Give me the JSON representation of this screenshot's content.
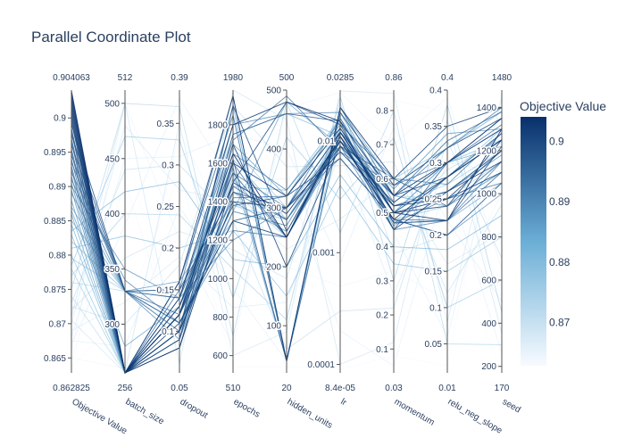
{
  "chart_data": {
    "type": "parallel_coordinates",
    "title": "Parallel Coordinate Plot",
    "dimensions": [
      {
        "label": "Objective Value",
        "min": 0.862825,
        "max": 0.904063,
        "min_label": "0.862825",
        "max_label": "0.904063",
        "ticks": [
          0.865,
          0.87,
          0.875,
          0.88,
          0.885,
          0.89,
          0.895,
          0.9
        ],
        "tick_labels": [
          "0.865",
          "0.87",
          "0.875",
          "0.88",
          "0.885",
          "0.89",
          "0.895",
          "0.9"
        ],
        "scale": "linear"
      },
      {
        "label": "batch_size",
        "min": 256,
        "max": 512,
        "min_label": "256",
        "max_label": "512",
        "ticks": [
          300,
          350,
          400,
          450,
          500
        ],
        "tick_labels": [
          "300",
          "350",
          "400",
          "450",
          "500"
        ],
        "scale": "linear"
      },
      {
        "label": "dropout",
        "min": 0.05,
        "max": 0.39,
        "min_label": "0.05",
        "max_label": "0.39",
        "ticks": [
          0.1,
          0.15,
          0.2,
          0.25,
          0.3,
          0.35
        ],
        "tick_labels": [
          "0.1",
          "0.15",
          "0.2",
          "0.25",
          "0.3",
          "0.35"
        ],
        "scale": "linear"
      },
      {
        "label": "epochs",
        "min": 510,
        "max": 1980,
        "min_label": "510",
        "max_label": "1980",
        "ticks": [
          600,
          800,
          1000,
          1200,
          1400,
          1600,
          1800
        ],
        "tick_labels": [
          "600",
          "800",
          "1000",
          "1200",
          "1400",
          "1600",
          "1800"
        ],
        "scale": "linear"
      },
      {
        "label": "hidden_units",
        "min": 20,
        "max": 500,
        "min_label": "20",
        "max_label": "500",
        "ticks": [
          100,
          200,
          300,
          400,
          500
        ],
        "tick_labels": [
          "100",
          "200",
          "300",
          "400",
          "500"
        ],
        "scale": "linear"
      },
      {
        "label": "lr",
        "min": 8.4e-05,
        "max": 0.0285,
        "min_label": "8.4e-05",
        "max_label": "0.0285",
        "ticks": [
          0.0001,
          0.001,
          0.01
        ],
        "tick_labels": [
          "0.0001",
          "0.001",
          "0.01"
        ],
        "scale": "log"
      },
      {
        "label": "momentum",
        "min": 0.03,
        "max": 0.86,
        "min_label": "0.03",
        "max_label": "0.86",
        "ticks": [
          0.1,
          0.2,
          0.3,
          0.4,
          0.5,
          0.6,
          0.7,
          0.8
        ],
        "tick_labels": [
          "0.1",
          "0.2",
          "0.3",
          "0.4",
          "0.5",
          "0.6",
          "0.7",
          "0.8"
        ],
        "scale": "linear"
      },
      {
        "label": "relu_neg_slope",
        "min": 0.01,
        "max": 0.4,
        "min_label": "0.01",
        "max_label": "0.4",
        "ticks": [
          0.05,
          0.1,
          0.15,
          0.2,
          0.25,
          0.3,
          0.35,
          0.4
        ],
        "tick_labels": [
          "0.05",
          "0.1",
          "0.15",
          "0.2",
          "0.25",
          "0.3",
          "0.35",
          "0.4"
        ],
        "scale": "linear"
      },
      {
        "label": "seed",
        "min": 170,
        "max": 1480,
        "min_label": "170",
        "max_label": "1480",
        "ticks": [
          200,
          400,
          600,
          800,
          1000,
          1200,
          1400
        ],
        "tick_labels": [
          "200",
          "400",
          "600",
          "800",
          "1000",
          "1200",
          "1400"
        ],
        "scale": "linear"
      }
    ],
    "colorbar": {
      "title": "Objective Value",
      "min": 0.862825,
      "max": 0.904063,
      "ticks": [
        0.87,
        0.88,
        0.89,
        0.9
      ],
      "tick_labels": [
        "0.87",
        "0.88",
        "0.89",
        "0.9"
      ],
      "low_color": "#f7fbff",
      "mid_color": "#6baed6",
      "high_color": "#08306b"
    },
    "trials": [
      [
        0.904,
        256,
        0.12,
        1650,
        250,
        0.012,
        0.5,
        0.22,
        1300
      ],
      [
        0.9035,
        256,
        0.08,
        1500,
        290,
        0.01,
        0.48,
        0.28,
        1250
      ],
      [
        0.903,
        256,
        0.14,
        1800,
        480,
        0.015,
        0.55,
        0.3,
        1350
      ],
      [
        0.9025,
        256,
        0.1,
        1400,
        300,
        0.008,
        0.52,
        0.25,
        1200
      ],
      [
        0.902,
        256,
        0.16,
        1950,
        40,
        0.02,
        0.6,
        0.35,
        1400
      ],
      [
        0.9015,
        256,
        0.11,
        1300,
        250,
        0.011,
        0.45,
        0.26,
        1150
      ],
      [
        0.901,
        256,
        0.13,
        1600,
        320,
        0.013,
        0.5,
        0.24,
        1250
      ],
      [
        0.9005,
        256,
        0.09,
        1700,
        200,
        0.009,
        0.53,
        0.3,
        1300
      ],
      [
        0.9,
        256,
        0.12,
        1500,
        480,
        0.014,
        0.47,
        0.22,
        1220
      ],
      [
        0.8995,
        256,
        0.1,
        1900,
        260,
        0.01,
        0.55,
        0.28,
        1280
      ],
      [
        0.899,
        330,
        0.15,
        1450,
        300,
        0.012,
        0.5,
        0.25,
        1100
      ],
      [
        0.8985,
        256,
        0.08,
        1620,
        40,
        0.018,
        0.58,
        0.32,
        1350
      ],
      [
        0.898,
        256,
        0.12,
        1380,
        320,
        0.007,
        0.48,
        0.2,
        1050
      ],
      [
        0.8975,
        330,
        0.14,
        1550,
        250,
        0.011,
        0.52,
        0.26,
        1200
      ],
      [
        0.897,
        256,
        0.1,
        1750,
        460,
        0.015,
        0.45,
        0.3,
        1300
      ],
      [
        0.8965,
        256,
        0.13,
        1480,
        280,
        0.009,
        0.6,
        0.24,
        1150
      ],
      [
        0.896,
        330,
        0.11,
        1300,
        300,
        0.012,
        0.5,
        0.28,
        1250
      ],
      [
        0.8955,
        256,
        0.16,
        1850,
        40,
        0.02,
        0.55,
        0.33,
        1380
      ],
      [
        0.895,
        256,
        0.09,
        1600,
        250,
        0.01,
        0.48,
        0.22,
        1100
      ],
      [
        0.8945,
        330,
        0.12,
        1420,
        320,
        0.013,
        0.52,
        0.26,
        1200
      ],
      [
        0.894,
        256,
        0.14,
        1720,
        490,
        0.008,
        0.58,
        0.3,
        1320
      ],
      [
        0.8935,
        330,
        0.1,
        1350,
        270,
        0.011,
        0.47,
        0.25,
        1050
      ],
      [
        0.893,
        256,
        0.12,
        1550,
        300,
        0.016,
        0.5,
        0.28,
        1250
      ],
      [
        0.8925,
        256,
        0.15,
        1950,
        40,
        0.012,
        0.55,
        0.32,
        1400
      ],
      [
        0.892,
        340,
        0.11,
        1250,
        250,
        0.009,
        0.45,
        0.22,
        1150
      ],
      [
        0.8915,
        256,
        0.13,
        1650,
        330,
        0.014,
        0.6,
        0.27,
        1280
      ],
      [
        0.891,
        330,
        0.09,
        1450,
        280,
        0.01,
        0.5,
        0.25,
        1100
      ],
      [
        0.8905,
        256,
        0.12,
        1800,
        460,
        0.018,
        0.53,
        0.3,
        1350
      ],
      [
        0.89,
        350,
        0.14,
        1200,
        300,
        0.007,
        0.48,
        0.2,
        1000
      ],
      [
        0.8895,
        256,
        0.1,
        1580,
        40,
        0.012,
        0.57,
        0.34,
        1300
      ],
      [
        0.889,
        330,
        0.16,
        1400,
        260,
        0.011,
        0.52,
        0.26,
        1180
      ],
      [
        0.888,
        256,
        0.12,
        1700,
        320,
        0.015,
        0.46,
        0.28,
        1250
      ],
      [
        0.887,
        330,
        0.11,
        1350,
        480,
        0.009,
        0.55,
        0.24,
        1100
      ],
      [
        0.8865,
        280,
        0.13,
        1520,
        250,
        0.013,
        0.5,
        0.3,
        1220
      ],
      [
        0.886,
        256,
        0.09,
        1900,
        40,
        0.02,
        0.58,
        0.32,
        1380
      ],
      [
        0.885,
        330,
        0.15,
        1300,
        300,
        0.01,
        0.47,
        0.22,
        1050
      ],
      [
        0.8845,
        256,
        0.12,
        1620,
        280,
        0.012,
        0.52,
        0.26,
        1200
      ],
      [
        0.8835,
        420,
        0.28,
        1100,
        200,
        0.005,
        0.4,
        0.18,
        900
      ],
      [
        0.883,
        256,
        0.1,
        1480,
        330,
        0.016,
        0.55,
        0.28,
        1300
      ],
      [
        0.882,
        330,
        0.14,
        1750,
        460,
        0.011,
        0.5,
        0.3,
        1250
      ],
      [
        0.881,
        380,
        0.2,
        1250,
        150,
        0.004,
        0.35,
        0.15,
        800
      ],
      [
        0.88,
        256,
        0.12,
        1550,
        40,
        0.014,
        0.6,
        0.32,
        1350
      ],
      [
        0.8795,
        330,
        0.11,
        1380,
        280,
        0.009,
        0.48,
        0.24,
        1100
      ],
      [
        0.8785,
        470,
        0.33,
        900,
        420,
        0.003,
        0.72,
        0.1,
        600
      ],
      [
        0.878,
        256,
        0.13,
        1680,
        300,
        0.012,
        0.52,
        0.27,
        1200
      ],
      [
        0.877,
        400,
        0.24,
        1050,
        110,
        0.025,
        0.3,
        0.38,
        450
      ],
      [
        0.876,
        330,
        0.1,
        1450,
        250,
        0.01,
        0.55,
        0.25,
        1150
      ],
      [
        0.875,
        500,
        0.37,
        700,
        480,
        0.0015,
        0.8,
        0.05,
        300
      ],
      [
        0.874,
        256,
        0.15,
        1600,
        320,
        0.016,
        0.47,
        0.29,
        1250
      ],
      [
        0.873,
        440,
        0.3,
        1300,
        60,
        0.0003,
        0.22,
        0.33,
        700
      ],
      [
        0.8725,
        300,
        0.18,
        1900,
        370,
        0.006,
        0.65,
        0.12,
        950
      ],
      [
        0.872,
        360,
        0.22,
        1150,
        180,
        0.022,
        0.38,
        0.2,
        1050
      ],
      [
        0.871,
        500,
        0.06,
        1980,
        450,
        0.0001,
        0.12,
        0.36,
        350
      ],
      [
        0.8705,
        256,
        0.35,
        600,
        90,
        0.028,
        0.85,
        0.08,
        1450
      ],
      [
        0.87,
        480,
        0.27,
        1400,
        230,
        0.002,
        0.6,
        0.16,
        820
      ],
      [
        0.869,
        320,
        0.19,
        850,
        140,
        0.008,
        0.26,
        0.3,
        1100
      ],
      [
        0.868,
        450,
        0.31,
        1750,
        400,
        0.0008,
        0.75,
        0.22,
        500
      ],
      [
        0.8675,
        280,
        0.25,
        950,
        40,
        0.018,
        0.44,
        0.06,
        1300
      ],
      [
        0.867,
        390,
        0.38,
        1500,
        350,
        0.0002,
        0.05,
        0.28,
        260
      ],
      [
        0.866,
        500,
        0.21,
        650,
        470,
        0.027,
        0.7,
        0.39,
        650
      ],
      [
        0.865,
        260,
        0.34,
        1200,
        200,
        0.0005,
        0.33,
        0.11,
        1000
      ],
      [
        0.8645,
        430,
        0.07,
        1850,
        120,
        0.009,
        0.83,
        0.37,
        380
      ],
      [
        0.8638,
        310,
        0.29,
        540,
        30,
        9e-05,
        0.08,
        0.02,
        1470
      ],
      [
        0.8632,
        470,
        0.05,
        1300,
        260,
        0.0012,
        0.55,
        0.19,
        180
      ]
    ]
  }
}
